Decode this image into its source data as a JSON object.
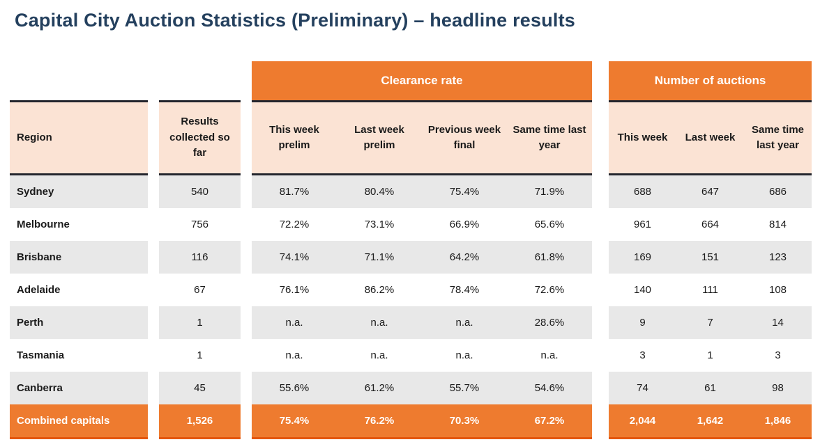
{
  "title": "Capital City Auction Statistics (Preliminary) – headline results",
  "colors": {
    "accent_orange": "#ee7b2f",
    "header_peach": "#fbe3d4",
    "shaded_row_gray": "#e8e8e8",
    "dark_rule": "#23252d",
    "total_row_bottom_rule": "#e4560d",
    "title_navy": "#24405e",
    "body_text": "#1a1a1a"
  },
  "chart_data": {
    "type": "table",
    "title": "Capital City Auction Statistics (Preliminary) – headline results",
    "group_headers": [
      {
        "label": "Clearance rate",
        "colspan": 4
      },
      {
        "label": "Number of auctions",
        "colspan": 3
      }
    ],
    "columns": [
      "Region",
      "Results collected so far",
      "This week prelim",
      "Last week prelim",
      "Previous week final",
      "Same time last year",
      "This week",
      "Last week",
      "Same time last year"
    ],
    "rows": [
      {
        "region": "Sydney",
        "values": [
          "540",
          "81.7%",
          "80.4%",
          "75.4%",
          "71.9%",
          "688",
          "647",
          "686"
        ],
        "is_total": false
      },
      {
        "region": "Melbourne",
        "values": [
          "756",
          "72.2%",
          "73.1%",
          "66.9%",
          "65.6%",
          "961",
          "664",
          "814"
        ],
        "is_total": false
      },
      {
        "region": "Brisbane",
        "values": [
          "116",
          "74.1%",
          "71.1%",
          "64.2%",
          "61.8%",
          "169",
          "151",
          "123"
        ],
        "is_total": false
      },
      {
        "region": "Adelaide",
        "values": [
          "67",
          "76.1%",
          "86.2%",
          "78.4%",
          "72.6%",
          "140",
          "111",
          "108"
        ],
        "is_total": false
      },
      {
        "region": "Perth",
        "values": [
          "1",
          "n.a.",
          "n.a.",
          "n.a.",
          "28.6%",
          "9",
          "7",
          "14"
        ],
        "is_total": false
      },
      {
        "region": "Tasmania",
        "values": [
          "1",
          "n.a.",
          "n.a.",
          "n.a.",
          "n.a.",
          "3",
          "1",
          "3"
        ],
        "is_total": false
      },
      {
        "region": "Canberra",
        "values": [
          "45",
          "55.6%",
          "61.2%",
          "55.7%",
          "54.6%",
          "74",
          "61",
          "98"
        ],
        "is_total": false
      },
      {
        "region": "Combined capitals",
        "values": [
          "1,526",
          "75.4%",
          "76.2%",
          "70.3%",
          "67.2%",
          "2,044",
          "1,642",
          "1,846"
        ],
        "is_total": true
      }
    ]
  }
}
